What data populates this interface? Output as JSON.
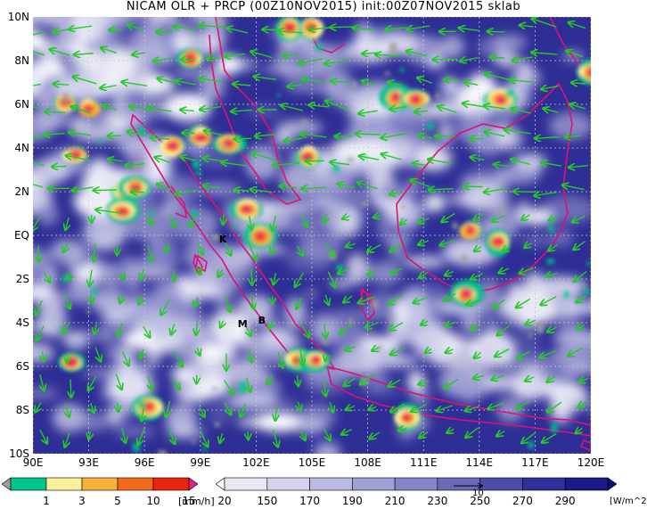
{
  "title": "NICAM OLR + PRCP (00Z10NOV2015) init:00Z07NOV2015 sklab",
  "y_axis_labels": [
    "10N",
    "8N",
    "6N",
    "4N",
    "2N",
    "EQ",
    "2S",
    "4S",
    "6S",
    "8S",
    "10S"
  ],
  "x_axis_labels": [
    "90E",
    "93E",
    "96E",
    "99E",
    "102E",
    "105E",
    "108E",
    "111E",
    "114E",
    "117E",
    "120E"
  ],
  "map_data": {
    "lon_range": [
      90,
      120
    ],
    "lat_range": [
      -10,
      10
    ],
    "grid": "dashed",
    "wind_vectors_color": "#22cc22",
    "coastline_color": "#dd1177",
    "stations": [
      {
        "label": "K",
        "lon": 100.2,
        "lat": -0.2
      },
      {
        "label": "M",
        "lon": 101.2,
        "lat": -4.1
      },
      {
        "label": "B",
        "lon": 102.3,
        "lat": -3.9
      }
    ]
  },
  "precip_legend": {
    "labels": [
      "1",
      "3",
      "5",
      "10",
      "15",
      "20"
    ],
    "units": "[mm/h]",
    "colors": [
      "#9e9e9e",
      "#00c48c",
      "#fbf19c",
      "#f9b03a",
      "#f46a1c",
      "#e8260e",
      "#e71d8c"
    ]
  },
  "olr_legend": {
    "labels": [
      "150",
      "170",
      "190",
      "210",
      "230",
      "250",
      "270",
      "290"
    ],
    "units": "[W/m^2]",
    "vector_label": "10",
    "colors": [
      "#ffffff",
      "#e9e9f6",
      "#d3d3ee",
      "#babae2",
      "#a0a0d6",
      "#8585c8",
      "#6a6aba",
      "#4c4caa",
      "#30309a",
      "#1a1a8a",
      "#0d0d78"
    ]
  }
}
